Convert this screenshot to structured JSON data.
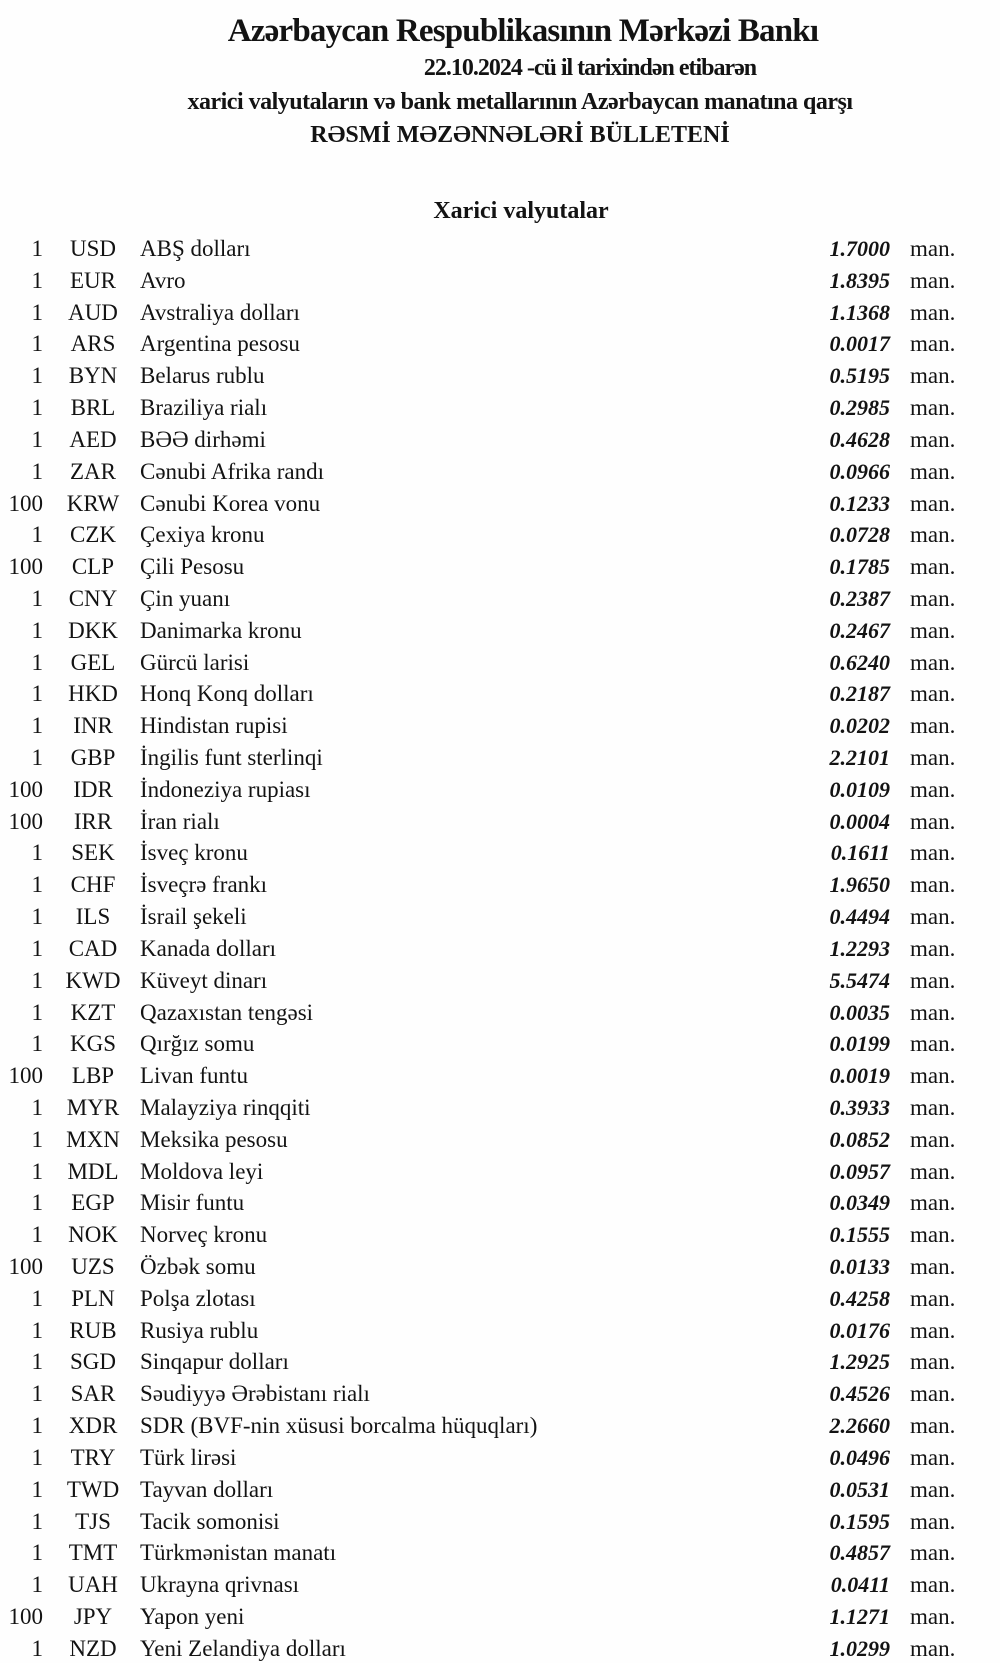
{
  "page": {
    "background_color": "#fefefe",
    "text_color": "#131313",
    "unit_label": "man."
  },
  "header": {
    "title": "Azərbaycan Respublikasının Mərkəzi Bankı",
    "date_line": "22.10.2024 -cü il tarixindən etibarən",
    "subtitle": "xarici valyutaların və bank metallarının Azərbaycan manatına qarşı",
    "bulletin_title": "RƏSMİ MƏZƏNNƏLƏRİ BÜLLETENİ"
  },
  "sections": {
    "foreign_currencies": {
      "title": "Xarici valyutalar"
    }
  },
  "rates": [
    {
      "qty": "1",
      "code": "USD",
      "name": "ABŞ dolları",
      "rate": "1.7000"
    },
    {
      "qty": "1",
      "code": "EUR",
      "name": "Avro",
      "rate": "1.8395"
    },
    {
      "qty": "1",
      "code": "AUD",
      "name": "Avstraliya dolları",
      "rate": "1.1368"
    },
    {
      "qty": "1",
      "code": "ARS",
      "name": "Argentina pesosu",
      "rate": "0.0017"
    },
    {
      "qty": "1",
      "code": "BYN",
      "name": "Belarus rublu",
      "rate": "0.5195"
    },
    {
      "qty": "1",
      "code": "BRL",
      "name": "Braziliya rialı",
      "rate": "0.2985"
    },
    {
      "qty": "1",
      "code": "AED",
      "name": "BƏƏ dirhəmi",
      "rate": "0.4628"
    },
    {
      "qty": "1",
      "code": "ZAR",
      "name": "Cənubi Afrika randı",
      "rate": "0.0966"
    },
    {
      "qty": "100",
      "code": "KRW",
      "name": "Cənubi Korea vonu",
      "rate": "0.1233"
    },
    {
      "qty": "1",
      "code": "CZK",
      "name": "Çexiya kronu",
      "rate": "0.0728"
    },
    {
      "qty": "100",
      "code": "CLP",
      "name": "Çili Pesosu",
      "rate": "0.1785"
    },
    {
      "qty": "1",
      "code": "CNY",
      "name": "Çin yuanı",
      "rate": "0.2387"
    },
    {
      "qty": "1",
      "code": "DKK",
      "name": "Danimarka kronu",
      "rate": "0.2467"
    },
    {
      "qty": "1",
      "code": "GEL",
      "name": "Gürcü larisi",
      "rate": "0.6240"
    },
    {
      "qty": "1",
      "code": "HKD",
      "name": "Honq Konq dolları",
      "rate": "0.2187"
    },
    {
      "qty": "1",
      "code": "INR",
      "name": "Hindistan rupisi",
      "rate": "0.0202"
    },
    {
      "qty": "1",
      "code": "GBP",
      "name": "İngilis funt sterlinqi",
      "rate": "2.2101"
    },
    {
      "qty": "100",
      "code": "IDR",
      "name": "İndoneziya rupiası",
      "rate": "0.0109"
    },
    {
      "qty": "100",
      "code": "IRR",
      "name": "İran rialı",
      "rate": "0.0004"
    },
    {
      "qty": "1",
      "code": "SEK",
      "name": "İsveç kronu",
      "rate": "0.1611"
    },
    {
      "qty": "1",
      "code": "CHF",
      "name": "İsveçrə frankı",
      "rate": "1.9650"
    },
    {
      "qty": "1",
      "code": "ILS",
      "name": "İsrail şekeli",
      "rate": "0.4494"
    },
    {
      "qty": "1",
      "code": "CAD",
      "name": "Kanada dolları",
      "rate": "1.2293"
    },
    {
      "qty": "1",
      "code": "KWD",
      "name": "Küveyt dinarı",
      "rate": "5.5474"
    },
    {
      "qty": "1",
      "code": "KZT",
      "name": "Qazaxıstan tengəsi",
      "rate": "0.0035"
    },
    {
      "qty": "1",
      "code": "KGS",
      "name": "Qırğız somu",
      "rate": "0.0199"
    },
    {
      "qty": "100",
      "code": "LBP",
      "name": "Livan funtu",
      "rate": "0.0019"
    },
    {
      "qty": "1",
      "code": "MYR",
      "name": "Malayziya rinqqiti",
      "rate": "0.3933"
    },
    {
      "qty": "1",
      "code": "MXN",
      "name": "Meksika pesosu",
      "rate": "0.0852"
    },
    {
      "qty": "1",
      "code": "MDL",
      "name": "Moldova leyi",
      "rate": "0.0957"
    },
    {
      "qty": "1",
      "code": "EGP",
      "name": "Misir funtu",
      "rate": "0.0349"
    },
    {
      "qty": "1",
      "code": "NOK",
      "name": "Norveç kronu",
      "rate": "0.1555"
    },
    {
      "qty": "100",
      "code": "UZS",
      "name": "Özbək somu",
      "rate": "0.0133"
    },
    {
      "qty": "1",
      "code": "PLN",
      "name": "Polşa zlotası",
      "rate": "0.4258"
    },
    {
      "qty": "1",
      "code": "RUB",
      "name": "Rusiya rublu",
      "rate": "0.0176"
    },
    {
      "qty": "1",
      "code": "SGD",
      "name": "Sinqapur dolları",
      "rate": "1.2925"
    },
    {
      "qty": "1",
      "code": "SAR",
      "name": "Səudiyyə Ərəbistanı rialı",
      "rate": "0.4526"
    },
    {
      "qty": "1",
      "code": "XDR",
      "name": "SDR (BVF-nin xüsusi borcalma hüquqları)",
      "rate": "2.2660"
    },
    {
      "qty": "1",
      "code": "TRY",
      "name": "Türk lirəsi",
      "rate": "0.0496"
    },
    {
      "qty": "1",
      "code": "TWD",
      "name": "Tayvan dolları",
      "rate": "0.0531"
    },
    {
      "qty": "1",
      "code": "TJS",
      "name": "Tacik somonisi",
      "rate": "0.1595"
    },
    {
      "qty": "1",
      "code": "TMT",
      "name": "Türkmənistan manatı",
      "rate": "0.4857"
    },
    {
      "qty": "1",
      "code": "UAH",
      "name": "Ukrayna qrivnası",
      "rate": "0.0411"
    },
    {
      "qty": "100",
      "code": "JPY",
      "name": "Yapon yeni",
      "rate": "1.1271"
    },
    {
      "qty": "1",
      "code": "NZD",
      "name": "Yeni Zelandiya dolları",
      "rate": "1.0299"
    }
  ]
}
